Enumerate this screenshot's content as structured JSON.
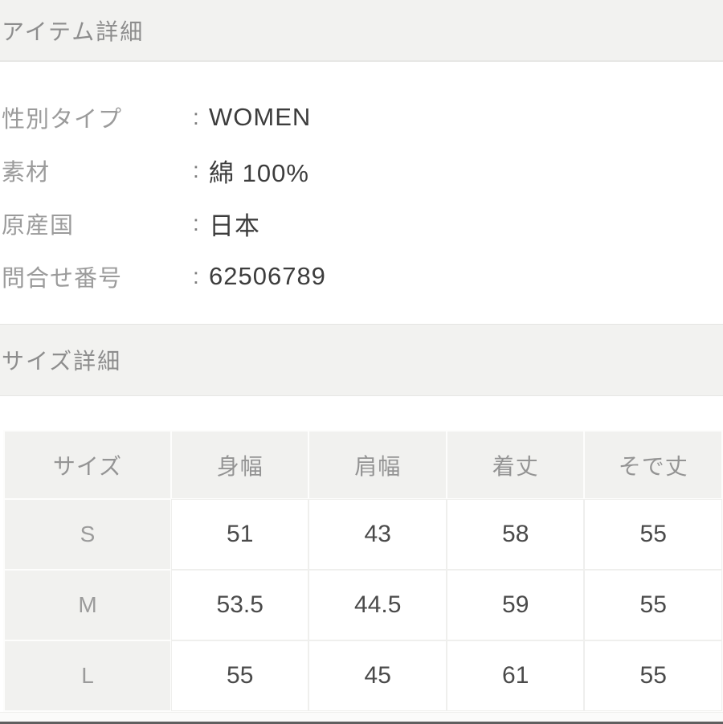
{
  "item_details": {
    "title": "アイテム詳細",
    "rows": [
      {
        "label": "性別タイプ",
        "separator": ":",
        "value": "WOMEN"
      },
      {
        "label": "素材",
        "separator": ":",
        "value": "綿 100%"
      },
      {
        "label": "原産国",
        "separator": ":",
        "value": "日本"
      },
      {
        "label": "問合せ番号",
        "separator": ":",
        "value": "62506789"
      }
    ]
  },
  "size_details": {
    "title": "サイズ詳細",
    "table": {
      "columns": [
        "サイズ",
        "身幅",
        "肩幅",
        "着丈",
        "そで丈"
      ],
      "rows": [
        {
          "size": "S",
          "values": [
            "51",
            "43",
            "58",
            "55"
          ]
        },
        {
          "size": "M",
          "values": [
            "53.5",
            "44.5",
            "59",
            "55"
          ]
        },
        {
          "size": "L",
          "values": [
            "55",
            "45",
            "61",
            "55"
          ]
        }
      ]
    }
  },
  "colors": {
    "band_background": "#f2f2f0",
    "band_border": "#e7e7e5",
    "label_gray": "#9b9b9b",
    "value_dark": "#3d3d3d",
    "table_header_background": "#f1f1ef",
    "table_data_text": "#4a4a4a",
    "bottom_bar": "#5f5f5f"
  }
}
